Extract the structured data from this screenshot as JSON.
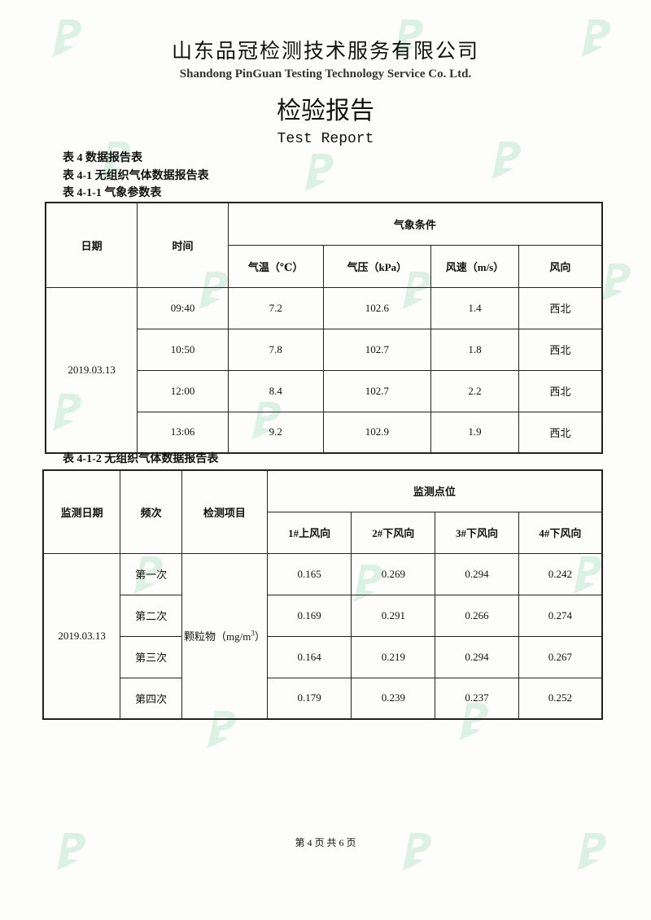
{
  "header": {
    "company_cn": "山东品冠检测技术服务有限公司",
    "company_en": "Shandong PinGuan Testing Technology Service Co. Ltd.",
    "title_cn": "检验报告",
    "title_en": "Test Report"
  },
  "captions": {
    "table4": "表 4 数据报告表",
    "table4_1": "表 4-1 无组织气体数据报告表",
    "table4_1_1": "表 4-1-1 气象参数表",
    "table4_1_2": "表 4-1-2 无组织气体数据报告表"
  },
  "weather_table": {
    "headers": {
      "date": "日期",
      "time": "时间",
      "conditions": "气象条件",
      "temp": "气温（℃）",
      "pressure": "气压（kPa）",
      "wind_speed": "风速（m/s）",
      "wind_dir": "风向"
    },
    "date": "2019.03.13",
    "rows": [
      {
        "time": "09:40",
        "temp": "7.2",
        "pressure": "102.6",
        "wind_speed": "1.4",
        "wind_dir": "西北"
      },
      {
        "time": "10:50",
        "temp": "7.8",
        "pressure": "102.7",
        "wind_speed": "1.8",
        "wind_dir": "西北"
      },
      {
        "time": "12:00",
        "temp": "8.4",
        "pressure": "102.7",
        "wind_speed": "2.2",
        "wind_dir": "西北"
      },
      {
        "time": "13:06",
        "temp": "9.2",
        "pressure": "102.9",
        "wind_speed": "1.9",
        "wind_dir": "西北"
      }
    ]
  },
  "gas_table": {
    "headers": {
      "date": "监测日期",
      "freq": "频次",
      "item": "检测项目",
      "points": "监测点位",
      "p1": "1#上风向",
      "p2": "2#下风向",
      "p3": "3#下风向",
      "p4": "4#下风向"
    },
    "date": "2019.03.13",
    "item": "颗粒物（mg/m",
    "item_sup": "3",
    "item_end": "）",
    "rows": [
      {
        "freq": "第一次",
        "v": [
          "0.165",
          "0.269",
          "0.294",
          "0.242"
        ]
      },
      {
        "freq": "第二次",
        "v": [
          "0.169",
          "0.291",
          "0.266",
          "0.274"
        ]
      },
      {
        "freq": "第三次",
        "v": [
          "0.164",
          "0.219",
          "0.294",
          "0.267"
        ]
      },
      {
        "freq": "第四次",
        "v": [
          "0.179",
          "0.239",
          "0.237",
          "0.252"
        ]
      }
    ]
  },
  "footer": {
    "page": "第 4 页 共 6 页"
  },
  "colors": {
    "watermark": "#cfeedd"
  },
  "watermark_logo": "P"
}
